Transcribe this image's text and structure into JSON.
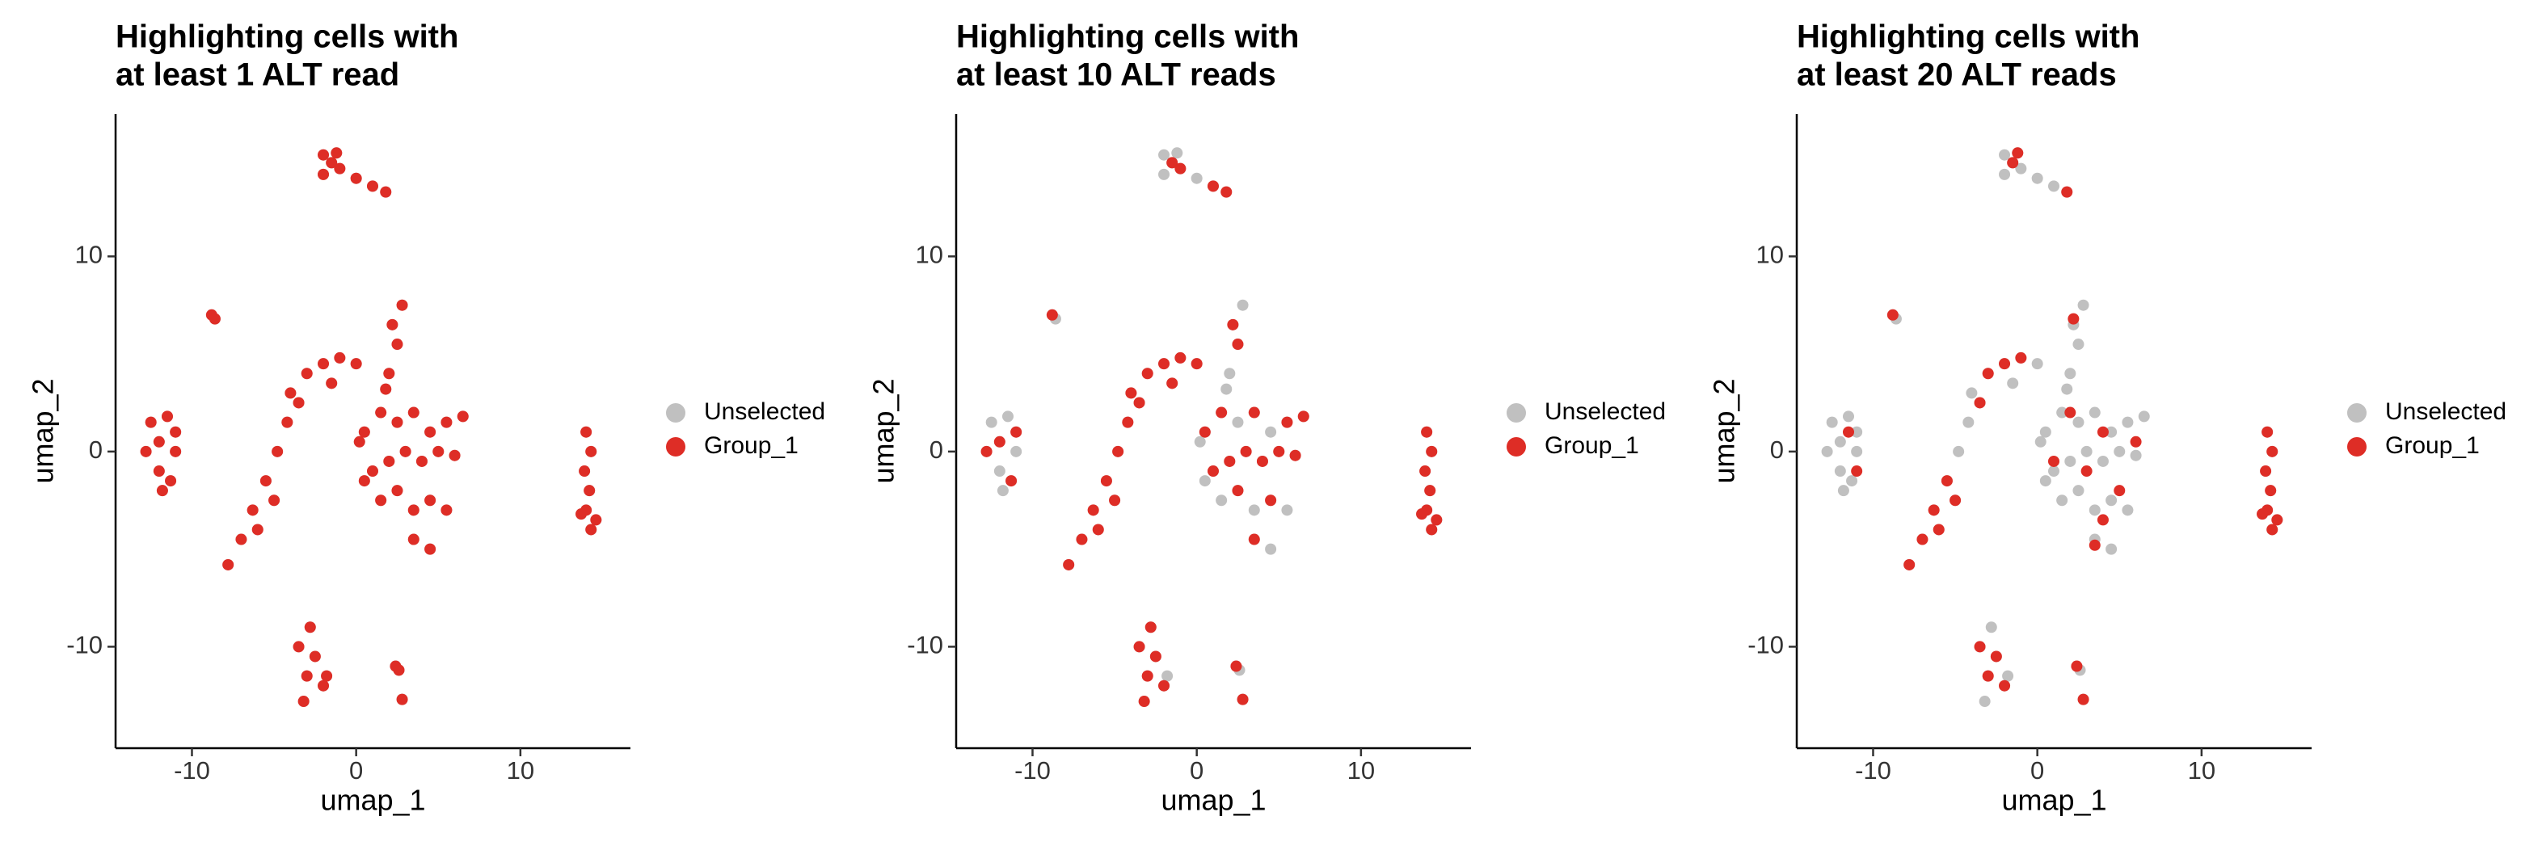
{
  "chart_data": [
    {
      "type": "scatter",
      "title": [
        "Highlighting cells with",
        "at least 1 ALT read"
      ],
      "xlabel": "umap_1",
      "ylabel": "umap_2",
      "xlim": [
        -14.65,
        16.7
      ],
      "ylim": [
        -15.2,
        17.3
      ],
      "xticks": [
        -10,
        0,
        10
      ],
      "yticks": [
        -10,
        0,
        10
      ],
      "legend": "right",
      "series": [
        {
          "name": "Unselected",
          "color": "#c0c0c0",
          "x": [
            -2,
            -1.5,
            -1,
            -2,
            -1.2,
            0,
            1,
            1.8,
            -8.8,
            -8.6,
            -12.5,
            -11.5,
            -11,
            -12,
            -12.8,
            -11,
            -12,
            -11.3,
            -11.8,
            -7.8,
            -7,
            -6.3,
            -5.5,
            -4.8,
            -4.2,
            -5,
            -6,
            -4,
            -3,
            -2,
            -1,
            0,
            -3.5,
            -1.5,
            0.5,
            1.5,
            2.5,
            3.5,
            4.5,
            5.5,
            6.5,
            1,
            2,
            3,
            4,
            5,
            6,
            1.5,
            2.5,
            3.5,
            4.5,
            5.5,
            3.5,
            4.5,
            0.5,
            0.2,
            2,
            2.5,
            2.2,
            2.8,
            1.8,
            14,
            14.3,
            13.9,
            14.2,
            14,
            14.6,
            13.7,
            14.3,
            -2.8,
            -3.5,
            -2.5,
            -3,
            -2,
            -3.2,
            -1.8,
            2.4,
            2.6,
            2.8
          ],
          "y": [
            15.2,
            14.8,
            14.5,
            14.2,
            15.3,
            14,
            13.6,
            13.3,
            7,
            6.8,
            1.5,
            1.8,
            1,
            0.5,
            0,
            0,
            -1,
            -1.5,
            -2,
            -5.8,
            -4.5,
            -3,
            -1.5,
            0,
            1.5,
            -2.5,
            -4,
            3,
            4,
            4.5,
            4.8,
            4.5,
            2.5,
            3.5,
            1,
            2,
            1.5,
            2,
            1,
            1.5,
            1.8,
            -1,
            -0.5,
            0,
            -0.5,
            0,
            -0.2,
            -2.5,
            -2,
            -3,
            -2.5,
            -3,
            -4.5,
            -5,
            -1.5,
            0.5,
            4,
            5.5,
            6.5,
            7.5,
            3.2,
            1,
            0,
            -1,
            -2,
            -3,
            -3.5,
            -3.2,
            -4,
            -9,
            -10,
            -10.5,
            -11.5,
            -12,
            -12.8,
            -11.5,
            -11,
            -11.2,
            -12.7
          ]
        },
        {
          "name": "Group_1",
          "color": "#de2d26",
          "x": [
            -2,
            -1.5,
            -1,
            -2,
            -1.2,
            0,
            1,
            1.8,
            -8.8,
            -8.6,
            -12.5,
            -11.5,
            -11,
            -12,
            -12.8,
            -11,
            -12,
            -11.3,
            -11.8,
            -7.8,
            -7,
            -6.3,
            -5.5,
            -4.8,
            -4.2,
            -5,
            -6,
            -4,
            -3,
            -2,
            -1,
            0,
            -3.5,
            -1.5,
            0.5,
            1.5,
            2.5,
            3.5,
            4.5,
            5.5,
            6.5,
            1,
            2,
            3,
            4,
            5,
            6,
            1.5,
            2.5,
            3.5,
            4.5,
            5.5,
            3.5,
            4.5,
            0.5,
            0.2,
            2,
            2.5,
            2.2,
            2.8,
            1.8,
            14,
            14.3,
            13.9,
            14.2,
            14,
            14.6,
            13.7,
            14.3,
            -2.8,
            -3.5,
            -2.5,
            -3,
            -2,
            -3.2,
            -1.8,
            2.4,
            2.6,
            2.8
          ],
          "y": [
            15.2,
            14.8,
            14.5,
            14.2,
            15.3,
            14,
            13.6,
            13.3,
            7,
            6.8,
            1.5,
            1.8,
            1,
            0.5,
            0,
            0,
            -1,
            -1.5,
            -2,
            -5.8,
            -4.5,
            -3,
            -1.5,
            0,
            1.5,
            -2.5,
            -4,
            3,
            4,
            4.5,
            4.8,
            4.5,
            2.5,
            3.5,
            1,
            2,
            1.5,
            2,
            1,
            1.5,
            1.8,
            -1,
            -0.5,
            0,
            -0.5,
            0,
            -0.2,
            -2.5,
            -2,
            -3,
            -2.5,
            -3,
            -4.5,
            -5,
            -1.5,
            0.5,
            4,
            5.5,
            6.5,
            7.5,
            3.2,
            1,
            0,
            -1,
            -2,
            -3,
            -3.5,
            -3.2,
            -4,
            -9,
            -10,
            -10.5,
            -11.5,
            -12,
            -12.8,
            -11.5,
            -11,
            -11.2,
            -12.7
          ]
        }
      ]
    },
    {
      "type": "scatter",
      "title": [
        "Highlighting cells with",
        "at least 10 ALT reads"
      ],
      "xlabel": "umap_1",
      "ylabel": "umap_2",
      "xlim": [
        -14.65,
        16.7
      ],
      "ylim": [
        -15.2,
        17.3
      ],
      "xticks": [
        -10,
        0,
        10
      ],
      "yticks": [
        -10,
        0,
        10
      ],
      "legend": "right",
      "series": [
        {
          "name": "Unselected",
          "color": "#c0c0c0",
          "x": [
            -2,
            -1.5,
            -1,
            -2,
            -1.2,
            0,
            1,
            1.8,
            -8.8,
            -8.6,
            -12.5,
            -11.5,
            -11,
            -12,
            -12.8,
            -11,
            -12,
            -11.3,
            -11.8,
            -7.8,
            -7,
            -6.3,
            -5.5,
            -4.8,
            -4.2,
            -5,
            -6,
            -4,
            -3,
            -2,
            -1,
            0,
            -3.5,
            -1.5,
            0.5,
            1.5,
            2.5,
            3.5,
            4.5,
            5.5,
            6.5,
            1,
            2,
            3,
            4,
            5,
            6,
            1.5,
            2.5,
            3.5,
            4.5,
            5.5,
            3.5,
            4.5,
            0.5,
            0.2,
            2,
            2.5,
            2.2,
            2.8,
            1.8,
            14,
            14.3,
            13.9,
            14.2,
            14,
            14.6,
            13.7,
            14.3,
            -2.8,
            -3.5,
            -2.5,
            -3,
            -2,
            -3.2,
            -1.8,
            2.4,
            2.6,
            2.8
          ],
          "y": [
            15.2,
            14.8,
            14.5,
            14.2,
            15.3,
            14,
            13.6,
            13.3,
            7,
            6.8,
            1.5,
            1.8,
            1,
            0.5,
            0,
            0,
            -1,
            -1.5,
            -2,
            -5.8,
            -4.5,
            -3,
            -1.5,
            0,
            1.5,
            -2.5,
            -4,
            3,
            4,
            4.5,
            4.8,
            4.5,
            2.5,
            3.5,
            1,
            2,
            1.5,
            2,
            1,
            1.5,
            1.8,
            -1,
            -0.5,
            0,
            -0.5,
            0,
            -0.2,
            -2.5,
            -2,
            -3,
            -2.5,
            -3,
            -4.5,
            -5,
            -1.5,
            0.5,
            4,
            5.5,
            6.5,
            7.5,
            3.2,
            1,
            0,
            -1,
            -2,
            -3,
            -3.5,
            -3.2,
            -4,
            -9,
            -10,
            -10.5,
            -11.5,
            -12,
            -12.8,
            -11.5,
            -11,
            -11.2,
            -12.7
          ]
        },
        {
          "name": "Group_1",
          "color": "#de2d26",
          "x": [
            -1.5,
            -1,
            1,
            1.8,
            -8.8,
            -12,
            -11,
            -11.3,
            -12.8,
            -7.8,
            -7,
            -6.3,
            -5.5,
            -4.8,
            -4.2,
            -5,
            -6,
            -4,
            -3,
            -2,
            -1,
            0,
            -3.5,
            -1.5,
            1.5,
            3.5,
            5.5,
            2,
            4,
            6,
            2.5,
            4.5,
            3.5,
            1,
            5,
            3,
            6.5,
            0.5,
            2.2,
            2.5,
            14,
            14.3,
            13.9,
            14.2,
            14,
            14.6,
            13.7,
            14.3,
            -2.8,
            -3.5,
            -2.5,
            -3,
            -2,
            -3.2,
            2.4,
            2.8
          ],
          "y": [
            14.8,
            14.5,
            13.6,
            13.3,
            7,
            0.5,
            1,
            -1.5,
            0,
            -5.8,
            -4.5,
            -3,
            -1.5,
            0,
            1.5,
            -2.5,
            -4,
            3,
            4,
            4.5,
            4.8,
            4.5,
            2.5,
            3.5,
            2,
            2,
            1.5,
            -0.5,
            -0.5,
            -0.2,
            -2,
            -2.5,
            -4.5,
            -1,
            0,
            0,
            1.8,
            1,
            6.5,
            5.5,
            1,
            0,
            -1,
            -2,
            -3,
            -3.5,
            -3.2,
            -4,
            -9,
            -10,
            -10.5,
            -11.5,
            -12,
            -12.8,
            -11,
            -12.7
          ]
        }
      ]
    },
    {
      "type": "scatter",
      "title": [
        "Highlighting cells with",
        "at least 20 ALT reads"
      ],
      "xlabel": "umap_1",
      "ylabel": "umap_2",
      "xlim": [
        -14.65,
        16.7
      ],
      "ylim": [
        -15.2,
        17.3
      ],
      "xticks": [
        -10,
        0,
        10
      ],
      "yticks": [
        -10,
        0,
        10
      ],
      "legend": "right",
      "series": [
        {
          "name": "Unselected",
          "color": "#c0c0c0",
          "x": [
            -2,
            -1.5,
            -1,
            -2,
            -1.2,
            0,
            1,
            1.8,
            -8.8,
            -8.6,
            -12.5,
            -11.5,
            -11,
            -12,
            -12.8,
            -11,
            -12,
            -11.3,
            -11.8,
            -7.8,
            -7,
            -6.3,
            -5.5,
            -4.8,
            -4.2,
            -5,
            -6,
            -4,
            -3,
            -2,
            -1,
            0,
            -3.5,
            -1.5,
            0.5,
            1.5,
            2.5,
            3.5,
            4.5,
            5.5,
            6.5,
            1,
            2,
            3,
            4,
            5,
            6,
            1.5,
            2.5,
            3.5,
            4.5,
            5.5,
            3.5,
            4.5,
            0.5,
            0.2,
            2,
            2.5,
            2.2,
            2.8,
            1.8,
            14,
            14.3,
            13.9,
            14.2,
            14,
            14.6,
            13.7,
            14.3,
            -2.8,
            -3.5,
            -2.5,
            -3,
            -2,
            -3.2,
            -1.8,
            2.4,
            2.6,
            2.8
          ],
          "y": [
            15.2,
            14.8,
            14.5,
            14.2,
            15.3,
            14,
            13.6,
            13.3,
            7,
            6.8,
            1.5,
            1.8,
            1,
            0.5,
            0,
            0,
            -1,
            -1.5,
            -2,
            -5.8,
            -4.5,
            -3,
            -1.5,
            0,
            1.5,
            -2.5,
            -4,
            3,
            4,
            4.5,
            4.8,
            4.5,
            2.5,
            3.5,
            1,
            2,
            1.5,
            2,
            1,
            1.5,
            1.8,
            -1,
            -0.5,
            0,
            -0.5,
            0,
            -0.2,
            -2.5,
            -2,
            -3,
            -2.5,
            -3,
            -4.5,
            -5,
            -1.5,
            0.5,
            4,
            5.5,
            6.5,
            7.5,
            3.2,
            1,
            0,
            -1,
            -2,
            -3,
            -3.5,
            -3.2,
            -4,
            -9,
            -10,
            -10.5,
            -11.5,
            -12,
            -12.8,
            -11.5,
            -11,
            -11.2,
            -12.7
          ]
        },
        {
          "name": "Group_1",
          "color": "#de2d26",
          "x": [
            -1.2,
            -1.5,
            1.8,
            -8.8,
            -11.5,
            -11,
            -7.8,
            -7,
            -6.3,
            -5.5,
            -5,
            -6,
            -3,
            -2,
            -1,
            -3.5,
            2,
            4,
            3,
            5,
            4,
            6,
            1,
            3.5,
            2.2,
            14,
            14.3,
            13.9,
            14.2,
            14,
            14.6,
            13.7,
            14.3,
            -3.5,
            -2.5,
            -3,
            -2,
            2.4,
            2.8
          ],
          "y": [
            15.3,
            14.8,
            13.3,
            7,
            1,
            -1,
            -5.8,
            -4.5,
            -3,
            -1.5,
            -2.5,
            -4,
            4,
            4.5,
            4.8,
            2.5,
            2,
            1,
            -1,
            -2,
            -3.5,
            0.5,
            -0.5,
            -4.8,
            6.8,
            1,
            0,
            -1,
            -2,
            -3,
            -3.5,
            -3.2,
            -4,
            -10,
            -10.5,
            -11.5,
            -12,
            -11,
            -12.7
          ]
        }
      ]
    }
  ]
}
